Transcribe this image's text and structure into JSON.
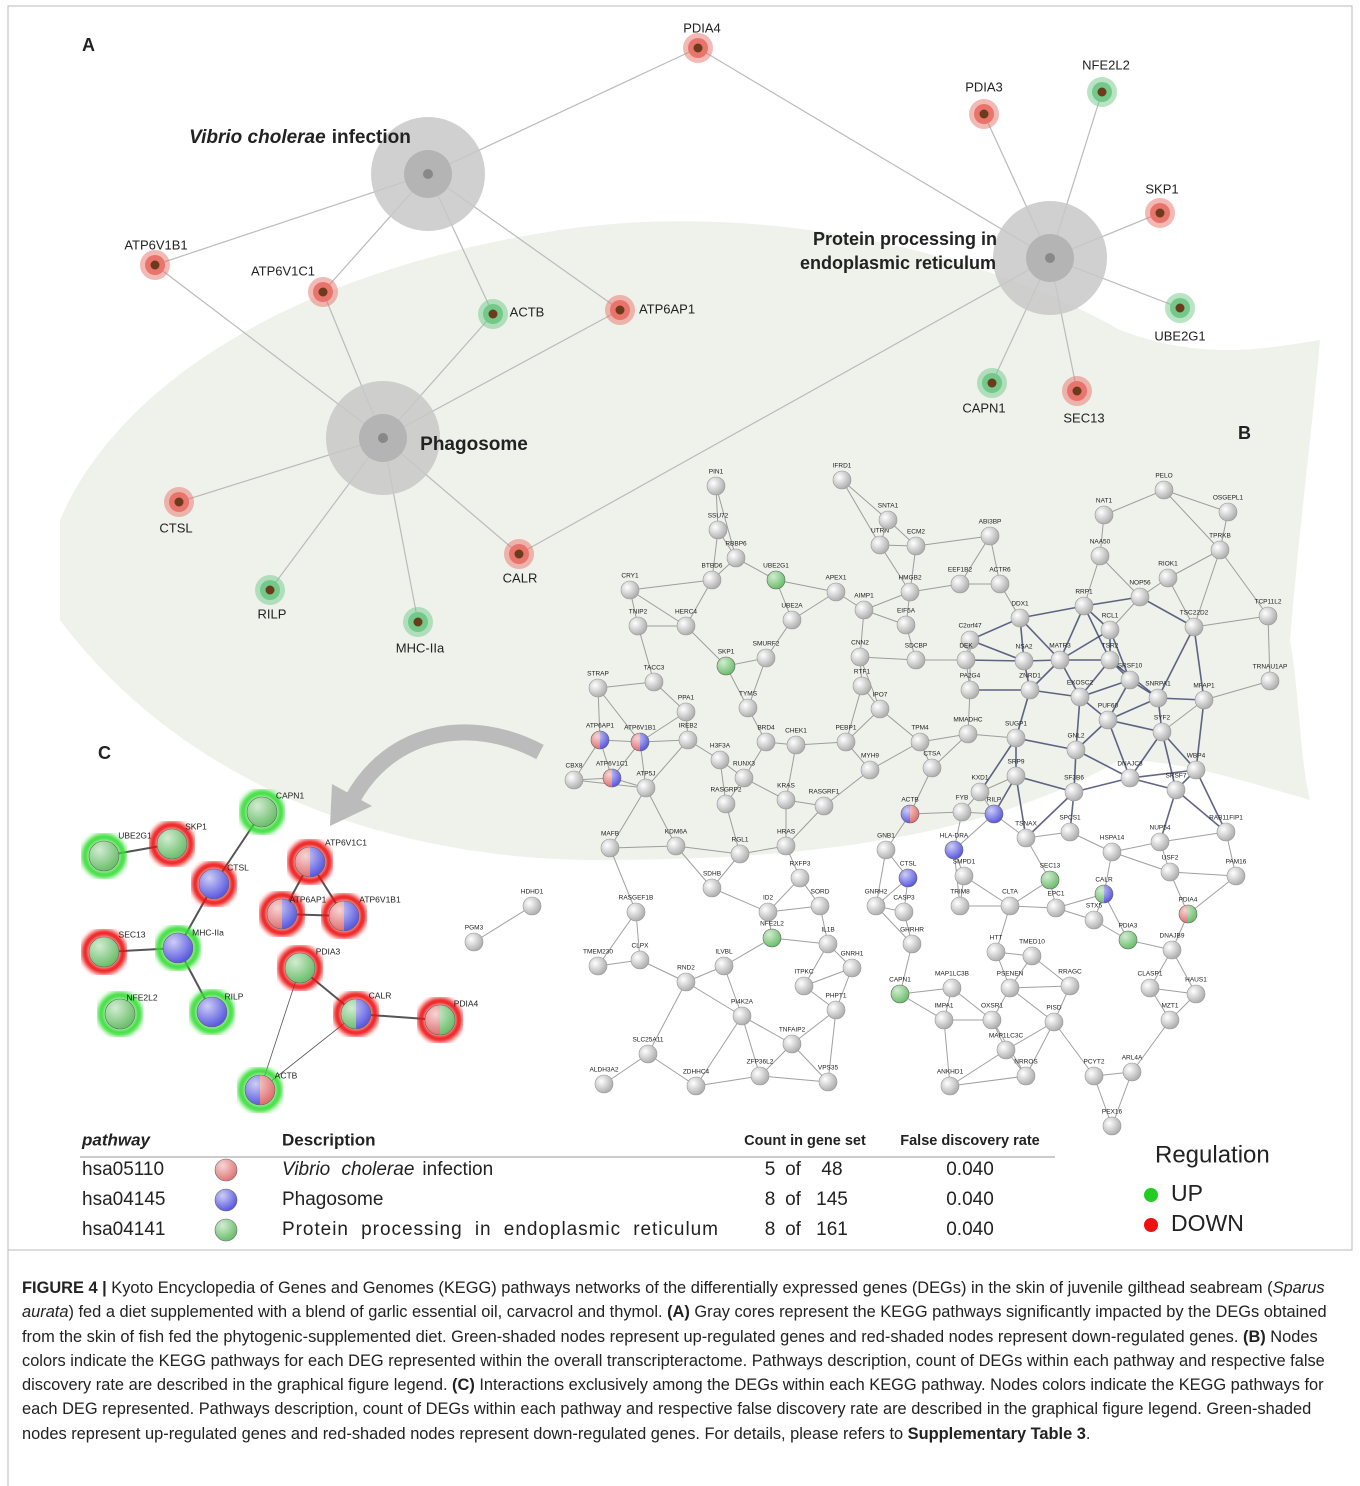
{
  "panel_labels": [
    "A",
    "B",
    "C"
  ],
  "panel_a": {
    "pathways": [
      {
        "label": [
          {
            "text": "Vibrio cholerae",
            "italic": true
          },
          {
            "text": "infection"
          }
        ]
      },
      {
        "label": [
          {
            "text": "Protein processing in"
          },
          {
            "text": "endoplasmic reticulum"
          }
        ]
      },
      {
        "label": [
          {
            "text": "Phagosome"
          }
        ]
      }
    ],
    "genes": [
      {
        "label": "PDIA4",
        "color": "#e8746c"
      },
      {
        "label": "PDIA3",
        "color": "#e8746c"
      },
      {
        "label": "NFE2L2",
        "color": "#72c98a"
      },
      {
        "label": "SKP1",
        "color": "#e8746c"
      },
      {
        "label": "UBE2G1",
        "color": "#72c98a"
      },
      {
        "label": "CAPN1",
        "color": "#72c98a"
      },
      {
        "label": "SEC13",
        "color": "#e8746c"
      },
      {
        "label": "ATP6V1B1",
        "color": "#e8746c"
      },
      {
        "label": "ATP6V1C1",
        "color": "#e8746c"
      },
      {
        "label": "ACTB",
        "color": "#72c98a"
      },
      {
        "label": "ATP6AP1",
        "color": "#e8746c"
      },
      {
        "label": "CTSL",
        "color": "#e8746c"
      },
      {
        "label": "CALR",
        "color": "#e8746c"
      },
      {
        "label": "RILP",
        "color": "#72c98a"
      },
      {
        "label": "MHC-IIa",
        "color": "#72c98a"
      }
    ]
  },
  "panel_b": {
    "nodes": [
      "PIN1",
      "IFRD1",
      "SSU72",
      "RBBP6",
      {
        "label": "UBE2G1",
        "colors": [
          "#6cbf6c"
        ]
      },
      "CRY1",
      "BTBD6",
      "APEX1",
      "UTRN",
      "SNTA1",
      "ECM2",
      "ABI3BP",
      "HMGB2",
      "AIMP1",
      "EEF1B2",
      "ACTR6",
      "NAT1",
      "NAA50",
      "PELO",
      "OSGEPL1",
      "TPRKB",
      "RIOK1",
      "TCP11L2",
      "TSC22D2",
      "TNIP2",
      "HERC4",
      "UBE2A",
      "EIF5A",
      "DDX1",
      "RRP1",
      "NOP56",
      "C2orf47",
      "SMURF2",
      {
        "label": "SKP1",
        "colors": [
          "#6cbf6c"
        ]
      },
      "CNN2",
      "SDCBP",
      "DEK",
      "NSA2",
      "RCL1",
      "TSR2",
      "MATR3",
      "STRAP",
      "TACC3",
      "RTF1",
      "PA2G4",
      "ZNRD1",
      "EXOSC2",
      "SRSF10",
      "SNRPA1",
      "MFAP1",
      "TRNAU1AP",
      "TYMS",
      "PPA1",
      "IPO7",
      "PUF60",
      "SYF2",
      {
        "label": "ATP6AP1",
        "colors": [
          "#e07070",
          "#5a5ae0"
        ]
      },
      {
        "label": "ATP6V1B1",
        "colors": [
          "#e07070",
          "#5a5ae0"
        ]
      },
      "IREB2",
      "BRD4",
      "CHEK1",
      "PEBP1",
      "TPM4",
      "MMADHC",
      "SUGP1",
      "GNL2",
      "WBP4",
      "H3F3A",
      "MYH9",
      "CBX8",
      {
        "label": "ATP6V1C1",
        "colors": [
          "#e07070",
          "#5a5ae0"
        ]
      },
      "ATP5J",
      "RUNX3",
      "CTSA",
      "KXD1",
      "SRP9",
      "SF3B6",
      "DNAJC8",
      "SRSF7",
      "RASGRP2",
      "KRAS",
      "RASGRF1",
      {
        "label": "ACTB",
        "colors": [
          "#5a5ae0",
          "#e07070"
        ]
      },
      "FYB",
      {
        "label": "RILP",
        "colors": [
          "#5a5ae0"
        ]
      },
      "MAFB",
      "KDM6A",
      "HRAS",
      "GNB1",
      {
        "label": "HLA-DRA",
        "colors": [
          "#5a5ae0"
        ]
      },
      "TSNAX",
      "SPCS1",
      "HSPA14",
      "NUP54",
      "RAB11FIP1",
      "RGL1",
      "RXFP3",
      "SMPD1",
      {
        "label": "CTSL",
        "colors": [
          "#5a5ae0"
        ]
      },
      {
        "label": "SEC13",
        "colors": [
          "#6cbf6c"
        ]
      },
      {
        "label": "CALR",
        "colors": [
          "#6cbf6c",
          "#5a5ae0"
        ]
      },
      "USF2",
      "PAM16",
      "HDHD1",
      "SDHB",
      "SORD",
      "GNRH2",
      "CASP3",
      "TRIM8",
      "CLTA",
      "EPC1",
      {
        "label": "PDIA4",
        "colors": [
          "#e07070",
          "#6cbf6c"
        ]
      },
      "RASGEF1B",
      "ID2",
      "STX5",
      {
        "label": "PDIA3",
        "colors": [
          "#6cbf6c"
        ]
      },
      "DNAJB9",
      "PGM3",
      {
        "label": "NFE2L2",
        "colors": [
          "#6cbf6c"
        ]
      },
      "IL1B",
      "GHRHR",
      "HTT",
      "TMED10",
      "TMEM230",
      "CLPX",
      "ILVBL",
      "GNRH1",
      "RRAGC",
      "CLASP1",
      "HAUS1",
      "RND2",
      "ITPKC",
      {
        "label": "CAPN1",
        "colors": [
          "#6cbf6c"
        ]
      },
      "MAP1LC3B",
      "PSENEN",
      "MZT1",
      "PI4K2A",
      "PHPT1",
      "IMPA1",
      "OXSR1",
      "PISD",
      "SLC25A11",
      "TNFAIP2",
      "MAP1LC3C",
      "ARL4A",
      "ALDH3A2",
      "ZDHHC4",
      "ZFP36L2",
      "VPS35",
      "ANKHD1",
      "NRROS",
      "PCYT2",
      "PEX16"
    ]
  },
  "panel_c": {
    "nodes": [
      {
        "label": "CAPN1",
        "ring": "#33dd33",
        "colors": [
          "#6cbf6c"
        ]
      },
      {
        "label": "UBE2G1",
        "ring": "#33dd33",
        "colors": [
          "#6cbf6c"
        ]
      },
      {
        "label": "SKP1",
        "ring": "#ee1111",
        "colors": [
          "#6cbf6c"
        ]
      },
      {
        "label": "CTSL",
        "ring": "#ee1111",
        "colors": [
          "#5a5ae0"
        ]
      },
      {
        "label": "ATP6V1C1",
        "ring": "#ee1111",
        "colors": [
          "#e07070",
          "#5a5ae0"
        ]
      },
      {
        "label": "ATP6AP1",
        "ring": "#ee1111",
        "colors": [
          "#e07070",
          "#5a5ae0"
        ]
      },
      {
        "label": "ATP6V1B1",
        "ring": "#ee1111",
        "colors": [
          "#e07070",
          "#5a5ae0"
        ]
      },
      {
        "label": "SEC13",
        "ring": "#ee1111",
        "colors": [
          "#6cbf6c"
        ]
      },
      {
        "label": "MHC-IIa",
        "ring": "#33dd33",
        "colors": [
          "#5a5ae0"
        ]
      },
      {
        "label": "PDIA3",
        "ring": "#ee1111",
        "colors": [
          "#6cbf6c"
        ]
      },
      {
        "label": "CALR",
        "ring": "#ee1111",
        "colors": [
          "#6cbf6c",
          "#5a5ae0"
        ]
      },
      {
        "label": "PDIA4",
        "ring": "#ee1111",
        "colors": [
          "#e07070",
          "#6cbf6c"
        ]
      },
      {
        "label": "NFE2L2",
        "ring": "#33dd33",
        "colors": [
          "#6cbf6c"
        ]
      },
      {
        "label": "RILP",
        "ring": "#33dd33",
        "colors": [
          "#5a5ae0"
        ]
      },
      {
        "label": "ACTB",
        "ring": "#33dd33",
        "colors": [
          "#5a5ae0",
          "#e07070"
        ]
      }
    ]
  },
  "table": {
    "headers": [
      "pathway",
      "Description",
      "Count in gene set",
      "False discovery rate"
    ],
    "rows": [
      {
        "id": "hsa05110",
        "color": "#e07878",
        "description": [
          {
            "text": "Vibrio cholerae",
            "italic": true
          },
          {
            "text": "infection"
          }
        ],
        "count": 5,
        "of": "of",
        "total": 48,
        "fdr": "0.040"
      },
      {
        "id": "hsa04145",
        "color": "#5a5ae0",
        "description": [
          {
            "text": "Phagosome"
          }
        ],
        "count": 8,
        "of": "of",
        "total": 145,
        "fdr": "0.040"
      },
      {
        "id": "hsa04141",
        "color": "#6cbf6c",
        "description": [
          {
            "text": "Protein processing in endoplasmic reticulum"
          }
        ],
        "count": 8,
        "of": "of",
        "total": 161,
        "fdr": "0.040"
      }
    ]
  },
  "legend": {
    "title": "Regulation",
    "items": [
      {
        "label": "UP",
        "color": "#22cc22"
      },
      {
        "label": "DOWN",
        "color": "#ee1111"
      }
    ]
  },
  "caption": [
    {
      "text": "FIGURE 4 |",
      "bold": true
    },
    {
      "text": " Kyoto Encyclopedia of Genes and Genomes (KEGG) pathways networks of the differentially expressed genes (DEGs) in the skin of juvenile gilthead seabream ("
    },
    {
      "text": "Sparus aurata",
      "italic": true
    },
    {
      "text": ") fed a diet supplemented with a blend of garlic essential oil, carvacrol and thymol. "
    },
    {
      "text": "(A)",
      "bold": true
    },
    {
      "text": " Gray cores represent the KEGG pathways significantly impacted by the DEGs obtained from the skin of fish fed the phytogenic-supplemented diet. Green-shaded nodes represent up-regulated genes and red-shaded nodes represent down-regulated genes. "
    },
    {
      "text": "(B)",
      "bold": true
    },
    {
      "text": " Nodes colors indicate the KEGG pathways for each DEG represented within the overall transcripteractome. Pathways description, count of DEGs within each pathway and respective false discovery rate are described in the graphical figure legend. "
    },
    {
      "text": "(C)",
      "bold": true
    },
    {
      "text": " Interactions exclusively among the DEGs within each KEGG pathway. Nodes colors indicate the KEGG pathways for each DEG represented. Pathways description, count of DEGs within each pathway and respective false discovery rate are described in the graphical figure legend. Green-shaded nodes represent up-regulated genes and red-shaded nodes represent down-regulated genes. For details, please refers to "
    },
    {
      "text": "Supplementary Table 3",
      "bold": true
    },
    {
      "text": "."
    }
  ]
}
